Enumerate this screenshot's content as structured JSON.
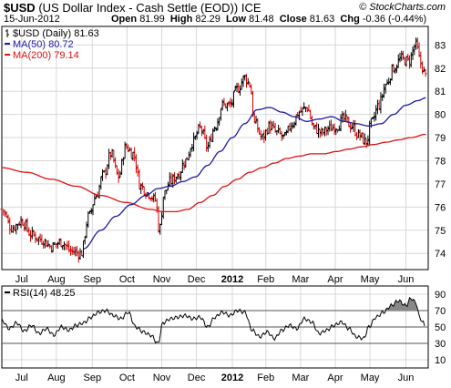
{
  "header": {
    "symbol": "$USD",
    "description": "(US Dollar Index - Cash Settle (EOD))",
    "exchange": "ICE",
    "date": "15-Jun-2012",
    "open_label": "Open",
    "open": "81.99",
    "high_label": "High",
    "high": "82.29",
    "low_label": "Low",
    "low": "81.48",
    "close_label": "Close",
    "close": "81.63",
    "chg_label": "Chg",
    "chg": "-0.36 (-0.44%)",
    "credit": "© StockCharts.com"
  },
  "colors": {
    "price_up": "#000000",
    "price_down": "#cc0000",
    "ma50": "#1a1aa6",
    "ma200": "#e01010",
    "grid": "#d8d8d8",
    "rsi_fill": "#888888",
    "rsi_fill_low": "#aaaaaa"
  },
  "chart_data": [
    {
      "type": "line",
      "series_style": "ohlc-bars",
      "legend": [
        {
          "text": "$USD (Daily) 81.63",
          "color": "#000000",
          "icon": "bar-glyph"
        },
        {
          "text": "MA(50) 80.72",
          "color": "#1a1aa6"
        },
        {
          "text": "MA(200) 79.14",
          "color": "#e01010"
        }
      ],
      "legend_position": "top-left",
      "y_axis_position": "right",
      "ylim": [
        73.3,
        83.8
      ],
      "y_ticks": [
        74,
        75,
        76,
        77,
        78,
        79,
        80,
        81,
        82,
        83
      ],
      "x_labels": [
        "Jul",
        "Aug",
        "Sep",
        "Oct",
        "Nov",
        "Dec",
        "2012",
        "Feb",
        "Mar",
        "Apr",
        "May",
        "Jun"
      ],
      "x_label_bold": "2012",
      "x_label_positions": [
        0.8,
        2.2,
        3.65,
        5.05,
        6.45,
        7.85,
        9.3,
        10.65,
        12.05,
        13.45,
        14.85,
        16.3
      ],
      "x_range": [
        0,
        17.2
      ],
      "grid": true,
      "series": [
        {
          "name": "$USD",
          "anchors": [
            [
              0.0,
              75.9
            ],
            [
              0.4,
              75.1
            ],
            [
              0.8,
              75.4
            ],
            [
              1.2,
              74.8
            ],
            [
              1.6,
              74.6
            ],
            [
              2.0,
              74.3
            ],
            [
              2.4,
              74.5
            ],
            [
              2.8,
              74.1
            ],
            [
              3.2,
              74.0
            ],
            [
              3.5,
              75.6
            ],
            [
              3.8,
              76.5
            ],
            [
              4.1,
              77.4
            ],
            [
              4.4,
              78.3
            ],
            [
              4.7,
              77.3
            ],
            [
              5.0,
              78.6
            ],
            [
              5.3,
              78.3
            ],
            [
              5.6,
              76.9
            ],
            [
              5.9,
              76.6
            ],
            [
              6.2,
              76.3
            ],
            [
              6.35,
              75.0
            ],
            [
              6.55,
              76.6
            ],
            [
              6.8,
              77.1
            ],
            [
              7.1,
              77.4
            ],
            [
              7.4,
              78.0
            ],
            [
              7.7,
              78.8
            ],
            [
              8.0,
              79.4
            ],
            [
              8.3,
              78.6
            ],
            [
              8.6,
              79.5
            ],
            [
              8.9,
              80.4
            ],
            [
              9.2,
              80.4
            ],
            [
              9.5,
              81.1
            ],
            [
              9.8,
              81.6
            ],
            [
              10.0,
              81.3
            ],
            [
              10.2,
              79.6
            ],
            [
              10.5,
              79.0
            ],
            [
              10.8,
              79.5
            ],
            [
              11.1,
              79.2
            ],
            [
              11.4,
              79.0
            ],
            [
              11.7,
              79.6
            ],
            [
              12.0,
              80.1
            ],
            [
              12.3,
              80.3
            ],
            [
              12.6,
              79.4
            ],
            [
              12.9,
              79.2
            ],
            [
              13.2,
              79.4
            ],
            [
              13.5,
              79.5
            ],
            [
              13.8,
              79.8
            ],
            [
              14.1,
              79.5
            ],
            [
              14.4,
              79.1
            ],
            [
              14.7,
              78.8
            ],
            [
              14.9,
              79.6
            ],
            [
              15.2,
              80.4
            ],
            [
              15.5,
              81.3
            ],
            [
              15.8,
              82.0
            ],
            [
              16.1,
              82.4
            ],
            [
              16.4,
              82.3
            ],
            [
              16.7,
              83.0
            ],
            [
              16.9,
              82.2
            ],
            [
              17.1,
              81.63
            ]
          ],
          "ma50_anchors": [
            [
              3.3,
              74.2
            ],
            [
              4.0,
              75.0
            ],
            [
              4.6,
              75.6
            ],
            [
              5.2,
              76.1
            ],
            [
              5.8,
              76.5
            ],
            [
              6.3,
              76.8
            ],
            [
              6.8,
              76.9
            ],
            [
              7.3,
              77.1
            ],
            [
              7.8,
              77.3
            ],
            [
              8.3,
              77.8
            ],
            [
              8.8,
              78.4
            ],
            [
              9.3,
              79.0
            ],
            [
              9.8,
              79.6
            ],
            [
              10.3,
              80.2
            ],
            [
              10.8,
              80.3
            ],
            [
              11.3,
              80.1
            ],
            [
              11.8,
              79.9
            ],
            [
              12.3,
              79.7
            ],
            [
              12.8,
              79.8
            ],
            [
              13.3,
              79.9
            ],
            [
              13.8,
              79.7
            ],
            [
              14.3,
              79.6
            ],
            [
              14.8,
              79.5
            ],
            [
              15.3,
              79.6
            ],
            [
              15.8,
              80.0
            ],
            [
              16.3,
              80.4
            ],
            [
              16.8,
              80.6
            ],
            [
              17.1,
              80.72
            ]
          ],
          "ma200_anchors": [
            [
              0.0,
              77.7
            ],
            [
              1.0,
              77.5
            ],
            [
              2.0,
              77.2
            ],
            [
              3.0,
              76.9
            ],
            [
              4.0,
              76.5
            ],
            [
              5.0,
              76.2
            ],
            [
              6.0,
              75.9
            ],
            [
              6.5,
              75.8
            ],
            [
              7.0,
              75.8
            ],
            [
              7.5,
              75.9
            ],
            [
              8.0,
              76.2
            ],
            [
              8.5,
              76.5
            ],
            [
              9.0,
              76.9
            ],
            [
              9.5,
              77.2
            ],
            [
              10.0,
              77.5
            ],
            [
              10.5,
              77.7
            ],
            [
              11.0,
              77.9
            ],
            [
              11.5,
              78.1
            ],
            [
              12.0,
              78.2
            ],
            [
              12.5,
              78.3
            ],
            [
              13.0,
              78.3
            ],
            [
              13.5,
              78.4
            ],
            [
              14.0,
              78.5
            ],
            [
              14.5,
              78.6
            ],
            [
              15.0,
              78.7
            ],
            [
              15.5,
              78.8
            ],
            [
              16.0,
              78.9
            ],
            [
              16.5,
              79.0
            ],
            [
              17.1,
              79.14
            ]
          ]
        }
      ]
    },
    {
      "type": "line",
      "legend": [
        {
          "text": "RSI(14) 48.25",
          "color": "#000000"
        }
      ],
      "legend_position": "top-left",
      "y_axis_position": "right",
      "ylim": [
        0,
        100
      ],
      "y_ticks": [
        10,
        30,
        50,
        70,
        90
      ],
      "reference_lines": [
        30,
        50,
        70
      ],
      "x_labels": [
        "Jul",
        "Aug",
        "Sep",
        "Oct",
        "Nov",
        "Dec",
        "2012",
        "Feb",
        "Mar",
        "Apr",
        "May",
        "Jun"
      ],
      "grid": true,
      "series": [
        {
          "name": "RSI(14)",
          "anchors": [
            [
              0.0,
              58
            ],
            [
              0.3,
              48
            ],
            [
              0.6,
              55
            ],
            [
              0.9,
              45
            ],
            [
              1.2,
              52
            ],
            [
              1.5,
              42
            ],
            [
              1.8,
              48
            ],
            [
              2.1,
              40
            ],
            [
              2.4,
              50
            ],
            [
              2.7,
              46
            ],
            [
              3.0,
              52
            ],
            [
              3.3,
              55
            ],
            [
              3.6,
              62
            ],
            [
              3.9,
              68
            ],
            [
              4.2,
              70
            ],
            [
              4.5,
              64
            ],
            [
              4.8,
              60
            ],
            [
              5.1,
              68
            ],
            [
              5.4,
              50
            ],
            [
              5.7,
              44
            ],
            [
              6.0,
              40
            ],
            [
              6.3,
              30
            ],
            [
              6.5,
              55
            ],
            [
              6.8,
              60
            ],
            [
              7.1,
              62
            ],
            [
              7.4,
              64
            ],
            [
              7.7,
              60
            ],
            [
              8.0,
              62
            ],
            [
              8.3,
              50
            ],
            [
              8.6,
              62
            ],
            [
              8.9,
              68
            ],
            [
              9.2,
              64
            ],
            [
              9.5,
              70
            ],
            [
              9.8,
              68
            ],
            [
              10.1,
              46
            ],
            [
              10.4,
              38
            ],
            [
              10.7,
              44
            ],
            [
              11.0,
              36
            ],
            [
              11.3,
              46
            ],
            [
              11.6,
              52
            ],
            [
              11.9,
              48
            ],
            [
              12.2,
              60
            ],
            [
              12.5,
              56
            ],
            [
              12.8,
              42
            ],
            [
              13.1,
              46
            ],
            [
              13.4,
              52
            ],
            [
              13.7,
              56
            ],
            [
              14.0,
              48
            ],
            [
              14.3,
              38
            ],
            [
              14.6,
              36
            ],
            [
              14.8,
              50
            ],
            [
              15.1,
              62
            ],
            [
              15.4,
              68
            ],
            [
              15.7,
              76
            ],
            [
              16.0,
              82
            ],
            [
              16.3,
              76
            ],
            [
              16.5,
              85
            ],
            [
              16.7,
              80
            ],
            [
              16.85,
              62
            ],
            [
              17.0,
              55
            ],
            [
              17.1,
              48.25
            ]
          ]
        }
      ]
    }
  ]
}
